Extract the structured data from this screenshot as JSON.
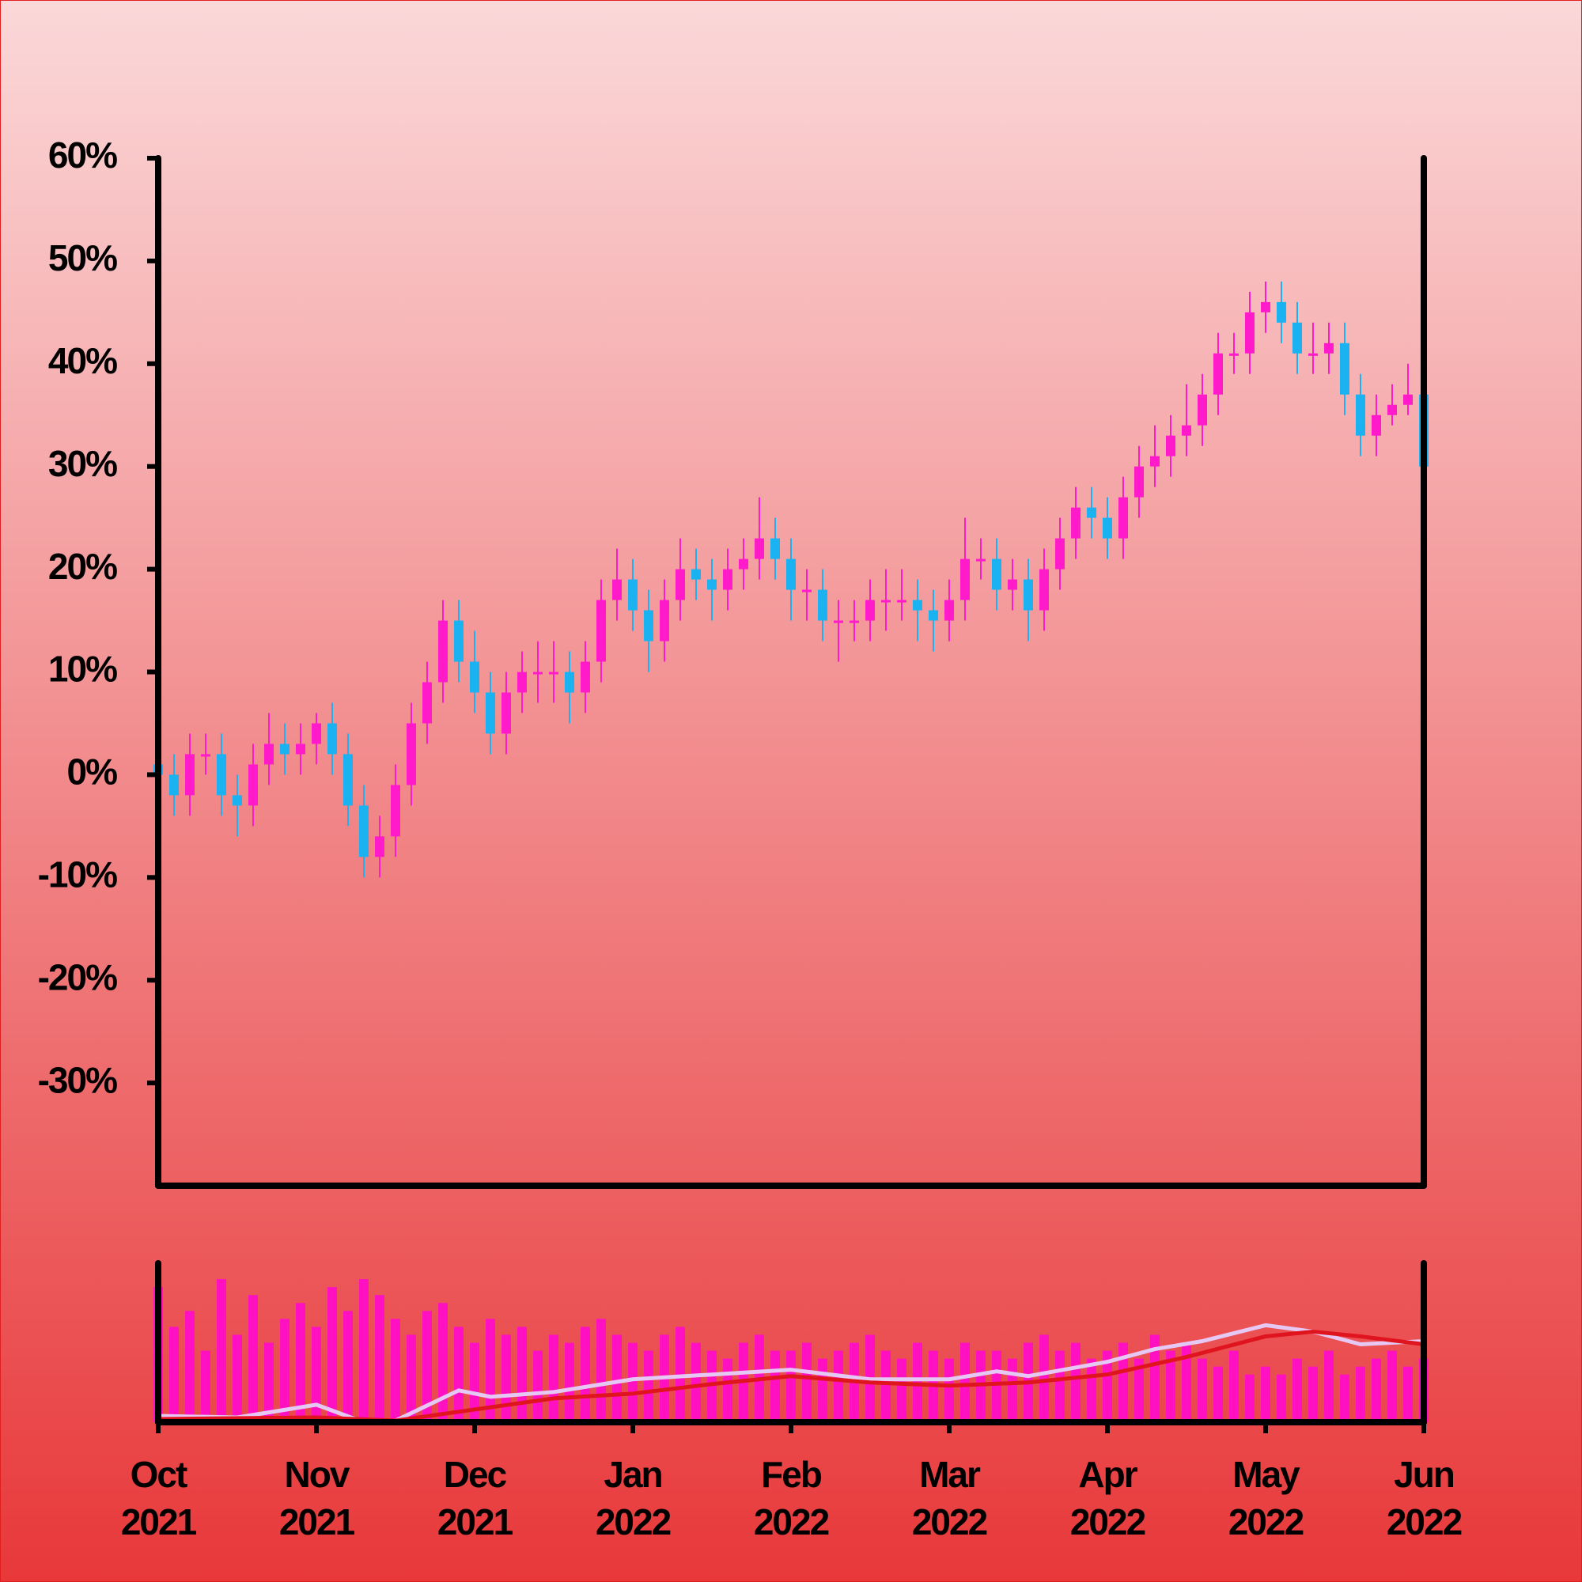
{
  "chart_data": {
    "type": "candlestick",
    "x": [
      0,
      0.1,
      0.2,
      0.3,
      0.4,
      0.5,
      0.6,
      0.7,
      0.8,
      0.9,
      1,
      1.1,
      1.2,
      1.3,
      1.4,
      1.5,
      1.6,
      1.7,
      1.8,
      1.9,
      2,
      2.1,
      2.2,
      2.3,
      2.4,
      2.5,
      2.6,
      2.7,
      2.8,
      2.9,
      3,
      3.1,
      3.2,
      3.3,
      3.4,
      3.5,
      3.6,
      3.7,
      3.8,
      3.9,
      4,
      4.1,
      4.2,
      4.3,
      4.4,
      4.5,
      4.6,
      4.7,
      4.8,
      4.9,
      5,
      5.1,
      5.2,
      5.3,
      5.4,
      5.5,
      5.6,
      5.7,
      5.8,
      5.9,
      6,
      6.1,
      6.2,
      6.3,
      6.4,
      6.5,
      6.6,
      6.7,
      6.8,
      6.9,
      7,
      7.1,
      7.2,
      7.3,
      7.4,
      7.5,
      7.6,
      7.7,
      7.8,
      7.9,
      8
    ],
    "open": [
      1,
      0,
      -2,
      2,
      2,
      -2,
      -3,
      1,
      3,
      2,
      3,
      5,
      2,
      -3,
      -8,
      -6,
      -1,
      5,
      9,
      15,
      11,
      8,
      4,
      8,
      10,
      10,
      10,
      8,
      11,
      17,
      19,
      16,
      13,
      17,
      20,
      19,
      18,
      20,
      21,
      23,
      21,
      18,
      18,
      15,
      15,
      15,
      17,
      17,
      17,
      16,
      15,
      17,
      21,
      21,
      18,
      19,
      16,
      20,
      23,
      26,
      25,
      23,
      27,
      30,
      31,
      33,
      34,
      37,
      41,
      41,
      45,
      46,
      44,
      41,
      41,
      42,
      37,
      33,
      35,
      36,
      37
    ],
    "high": [
      3,
      2,
      4,
      4,
      4,
      0,
      3,
      6,
      5,
      5,
      6,
      7,
      4,
      -1,
      -4,
      1,
      7,
      11,
      17,
      17,
      14,
      10,
      10,
      12,
      13,
      13,
      12,
      13,
      19,
      22,
      21,
      18,
      19,
      23,
      22,
      21,
      22,
      23,
      27,
      25,
      23,
      20,
      20,
      17,
      17,
      19,
      20,
      20,
      19,
      18,
      19,
      25,
      23,
      23,
      21,
      21,
      22,
      25,
      28,
      28,
      27,
      29,
      32,
      34,
      35,
      38,
      39,
      43,
      43,
      47,
      48,
      48,
      46,
      44,
      44,
      44,
      39,
      37,
      38,
      40,
      38
    ],
    "low": [
      -2,
      -4,
      -4,
      0,
      -4,
      -6,
      -5,
      -1,
      0,
      0,
      1,
      0,
      -5,
      -10,
      -10,
      -8,
      -3,
      3,
      7,
      9,
      6,
      2,
      2,
      6,
      7,
      7,
      5,
      6,
      9,
      15,
      14,
      10,
      11,
      15,
      17,
      15,
      16,
      18,
      19,
      19,
      15,
      15,
      13,
      11,
      13,
      13,
      14,
      15,
      13,
      12,
      13,
      15,
      19,
      16,
      16,
      13,
      14,
      18,
      21,
      23,
      21,
      21,
      25,
      28,
      29,
      31,
      32,
      35,
      39,
      39,
      43,
      42,
      39,
      39,
      39,
      35,
      31,
      31,
      34,
      35,
      28
    ],
    "close": [
      0,
      -2,
      2,
      2,
      -2,
      -3,
      1,
      3,
      2,
      3,
      5,
      2,
      -3,
      -8,
      -6,
      -1,
      5,
      9,
      15,
      11,
      8,
      4,
      8,
      10,
      10,
      10,
      8,
      11,
      17,
      19,
      16,
      13,
      17,
      20,
      19,
      18,
      20,
      21,
      23,
      21,
      18,
      18,
      15,
      15,
      15,
      17,
      17,
      17,
      16,
      15,
      17,
      21,
      21,
      18,
      19,
      16,
      20,
      23,
      26,
      25,
      23,
      27,
      30,
      31,
      33,
      34,
      37,
      41,
      41,
      45,
      46,
      44,
      41,
      41,
      42,
      37,
      33,
      35,
      36,
      37,
      30
    ],
    "up_color": "#ff1aca",
    "down_color": "#1ab2f0",
    "ylim": [
      -40,
      60
    ],
    "yticks": [
      {
        "value": -30,
        "label": "-30%"
      },
      {
        "value": -20,
        "label": "-20%"
      },
      {
        "value": -10,
        "label": "-10%"
      },
      {
        "value": 0,
        "label": "0%"
      },
      {
        "value": 10,
        "label": "10%"
      },
      {
        "value": 20,
        "label": "20%"
      },
      {
        "value": 30,
        "label": "30%"
      },
      {
        "value": 40,
        "label": "40%"
      },
      {
        "value": 50,
        "label": "50%"
      },
      {
        "value": 60,
        "label": "60%"
      }
    ],
    "xlim": [
      0,
      8
    ],
    "xticks": [
      {
        "value": 0,
        "label": [
          "Oct",
          "2021"
        ]
      },
      {
        "value": 1,
        "label": [
          "Nov",
          "2021"
        ]
      },
      {
        "value": 2,
        "label": [
          "Dec",
          "2021"
        ]
      },
      {
        "value": 3,
        "label": [
          "Jan",
          "2022"
        ]
      },
      {
        "value": 4,
        "label": [
          "Feb",
          "2022"
        ]
      },
      {
        "value": 5,
        "label": [
          "Mar",
          "2022"
        ]
      },
      {
        "value": 6,
        "label": [
          "Apr",
          "2022"
        ]
      },
      {
        "value": 7,
        "label": [
          "May",
          "2022"
        ]
      },
      {
        "value": 8,
        "label": [
          "Jun",
          "2022"
        ]
      }
    ],
    "volume": {
      "color": "#ff10c0",
      "ylim": [
        0,
        100
      ],
      "values": [
        85,
        60,
        70,
        45,
        90,
        55,
        80,
        50,
        65,
        75,
        60,
        85,
        70,
        90,
        80,
        65,
        55,
        70,
        75,
        60,
        50,
        65,
        55,
        60,
        45,
        55,
        50,
        60,
        65,
        55,
        50,
        45,
        55,
        60,
        50,
        45,
        40,
        50,
        55,
        45,
        45,
        50,
        40,
        45,
        50,
        55,
        45,
        40,
        50,
        45,
        40,
        50,
        45,
        45,
        40,
        50,
        55,
        45,
        50,
        40,
        45,
        50,
        40,
        55,
        45,
        50,
        40,
        35,
        45,
        30,
        35,
        30,
        40,
        35,
        45,
        30,
        35,
        40,
        45,
        35,
        40
      ]
    },
    "moving_averages": [
      {
        "color": "#e6c8f5",
        "x": [
          0,
          0.5,
          1,
          1.3,
          1.5,
          1.9,
          2.1,
          2.5,
          3,
          3.5,
          4,
          4.5,
          5,
          5.3,
          5.5,
          6,
          6.3,
          6.6,
          7,
          7.3,
          7.6,
          8
        ],
        "values": [
          4,
          3,
          11,
          0,
          1,
          20,
          16,
          19,
          27,
          30,
          33,
          27,
          27,
          32,
          29,
          38,
          46,
          51,
          61,
          57,
          49,
          51
        ]
      },
      {
        "color": "#e0141e",
        "x": [
          0,
          1,
          1.5,
          2,
          2.5,
          3,
          3.5,
          4,
          4.5,
          5,
          5.5,
          6,
          6.5,
          7,
          7.3,
          7.6,
          8
        ],
        "values": [
          2,
          3,
          1,
          8,
          15,
          18,
          24,
          29,
          25,
          23,
          25,
          30,
          41,
          54,
          57,
          54,
          49
        ]
      }
    ]
  }
}
